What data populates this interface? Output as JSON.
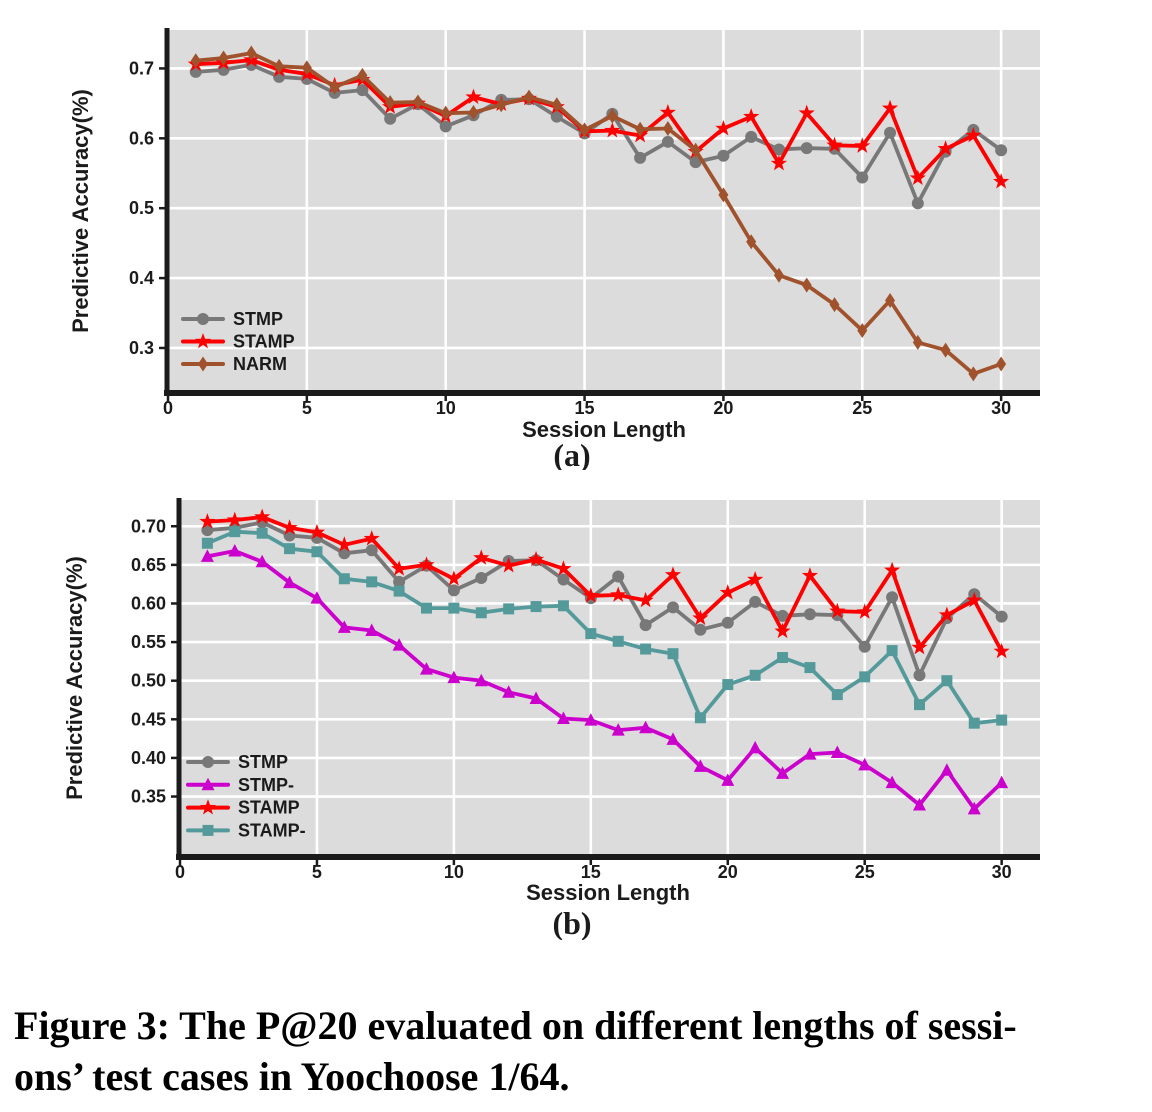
{
  "figure": {
    "caption_line1": "Figure 3: The P@20 evaluated on different lengths of sessi-",
    "caption_line2": "ons’ test cases in Yoochoose 1/64.",
    "subfig_a_label": "(a)",
    "subfig_b_label": "(b)"
  },
  "colors": {
    "stmp_gray": "#787878",
    "stamp_red": "#fe0000",
    "narm_brown": "#a0522d",
    "stmp_minus_magenta": "#cc00cc",
    "stamp_minus_teal": "#559a9b",
    "plot_background": "#dcdcdc",
    "gridline": "#ffffff",
    "axis": "#1b1b1b"
  },
  "chart_data": [
    {
      "type": "line",
      "title": "",
      "xlabel": "Session Length",
      "ylabel": "Predictive Accuracy(%)",
      "grid": true,
      "legend_position": "lower-left",
      "xlim": [
        0,
        31.4
      ],
      "ylim": [
        0.237,
        0.755
      ],
      "xticks": [
        0,
        5,
        10,
        15,
        20,
        25,
        30
      ],
      "xtick_labels": [
        "0",
        "5",
        "10",
        "15",
        "20",
        "25",
        "30"
      ],
      "yticks": [
        0.7,
        0.6,
        0.5,
        0.4,
        0.3
      ],
      "ytick_labels": [
        "0.7",
        "0.6",
        "0.5",
        "0.4",
        "0.3"
      ],
      "x": [
        1,
        2,
        3,
        4,
        5,
        6,
        7,
        8,
        9,
        10,
        11,
        12,
        13,
        14,
        15,
        16,
        17,
        18,
        19,
        20,
        21,
        22,
        23,
        24,
        25,
        26,
        27,
        28,
        29,
        30
      ],
      "series": [
        {
          "name": "STMP",
          "color": "#787878",
          "marker": "circle",
          "values": [
            0.695,
            0.698,
            0.705,
            0.688,
            0.685,
            0.665,
            0.669,
            0.628,
            0.649,
            0.617,
            0.633,
            0.655,
            0.656,
            0.631,
            0.607,
            0.635,
            0.572,
            0.595,
            0.566,
            0.575,
            0.602,
            0.584,
            0.586,
            0.585,
            0.544,
            0.608,
            0.507,
            0.581,
            0.612,
            0.583
          ]
        },
        {
          "name": "STAMP",
          "color": "#fe0000",
          "marker": "star",
          "values": [
            0.706,
            0.708,
            0.712,
            0.698,
            0.692,
            0.676,
            0.684,
            0.645,
            0.65,
            0.632,
            0.659,
            0.649,
            0.657,
            0.645,
            0.61,
            0.611,
            0.604,
            0.637,
            0.581,
            0.614,
            0.631,
            0.564,
            0.636,
            0.59,
            0.589,
            0.643,
            0.543,
            0.585,
            0.604,
            0.538
          ]
        },
        {
          "name": "NARM",
          "color": "#a0522d",
          "marker": "diamond",
          "values": [
            0.711,
            0.715,
            0.722,
            0.703,
            0.701,
            0.673,
            0.69,
            0.651,
            0.652,
            0.636,
            0.637,
            0.648,
            0.659,
            0.648,
            0.612,
            0.632,
            0.613,
            0.614,
            0.583,
            0.519,
            0.452,
            0.404,
            0.39,
            0.362,
            0.325,
            0.368,
            0.308,
            0.297,
            0.263,
            0.277
          ]
        }
      ]
    },
    {
      "type": "line",
      "title": "",
      "xlabel": "Session Length",
      "ylabel": "Predictive Accuracy(%)",
      "grid": true,
      "legend_position": "lower-left",
      "xlim": [
        0,
        31.4
      ],
      "ylim": [
        0.273,
        0.734
      ],
      "xticks": [
        0,
        5,
        10,
        15,
        20,
        25,
        30
      ],
      "xtick_labels": [
        "0",
        "5",
        "10",
        "15",
        "20",
        "25",
        "30"
      ],
      "yticks": [
        0.7,
        0.65,
        0.6,
        0.55,
        0.5,
        0.45,
        0.4,
        0.35
      ],
      "ytick_labels": [
        "0.70",
        "0.65",
        "0.60",
        "0.55",
        "0.50",
        "0.45",
        "0.40",
        "0.35"
      ],
      "x": [
        1,
        2,
        3,
        4,
        5,
        6,
        7,
        8,
        9,
        10,
        11,
        12,
        13,
        14,
        15,
        16,
        17,
        18,
        19,
        20,
        21,
        22,
        23,
        24,
        25,
        26,
        27,
        28,
        29,
        30
      ],
      "series": [
        {
          "name": "STMP",
          "color": "#787878",
          "marker": "circle",
          "values": [
            0.695,
            0.698,
            0.705,
            0.688,
            0.685,
            0.665,
            0.669,
            0.628,
            0.649,
            0.617,
            0.633,
            0.655,
            0.656,
            0.631,
            0.607,
            0.635,
            0.572,
            0.595,
            0.566,
            0.575,
            0.602,
            0.584,
            0.586,
            0.585,
            0.544,
            0.608,
            0.507,
            0.581,
            0.612,
            0.583
          ]
        },
        {
          "name": "STMP-",
          "color": "#cc00cc",
          "marker": "triangle",
          "values": [
            0.661,
            0.668,
            0.654,
            0.627,
            0.607,
            0.569,
            0.565,
            0.546,
            0.515,
            0.504,
            0.5,
            0.485,
            0.477,
            0.451,
            0.449,
            0.436,
            0.439,
            0.424,
            0.389,
            0.371,
            0.413,
            0.38,
            0.405,
            0.407,
            0.391,
            0.368,
            0.339,
            0.384,
            0.334,
            0.368
          ]
        },
        {
          "name": "STAMP",
          "color": "#fe0000",
          "marker": "star",
          "values": [
            0.706,
            0.708,
            0.712,
            0.698,
            0.692,
            0.676,
            0.684,
            0.645,
            0.65,
            0.632,
            0.659,
            0.649,
            0.657,
            0.645,
            0.61,
            0.611,
            0.604,
            0.637,
            0.581,
            0.614,
            0.631,
            0.564,
            0.636,
            0.59,
            0.589,
            0.643,
            0.543,
            0.585,
            0.604,
            0.538
          ]
        },
        {
          "name": "STAMP-",
          "color": "#559a9b",
          "marker": "square",
          "values": [
            0.678,
            0.693,
            0.691,
            0.671,
            0.667,
            0.632,
            0.628,
            0.616,
            0.594,
            0.594,
            0.588,
            0.593,
            0.596,
            0.597,
            0.561,
            0.551,
            0.541,
            0.535,
            0.452,
            0.495,
            0.507,
            0.53,
            0.517,
            0.482,
            0.505,
            0.539,
            0.469,
            0.5,
            0.445,
            0.449
          ]
        }
      ]
    }
  ]
}
